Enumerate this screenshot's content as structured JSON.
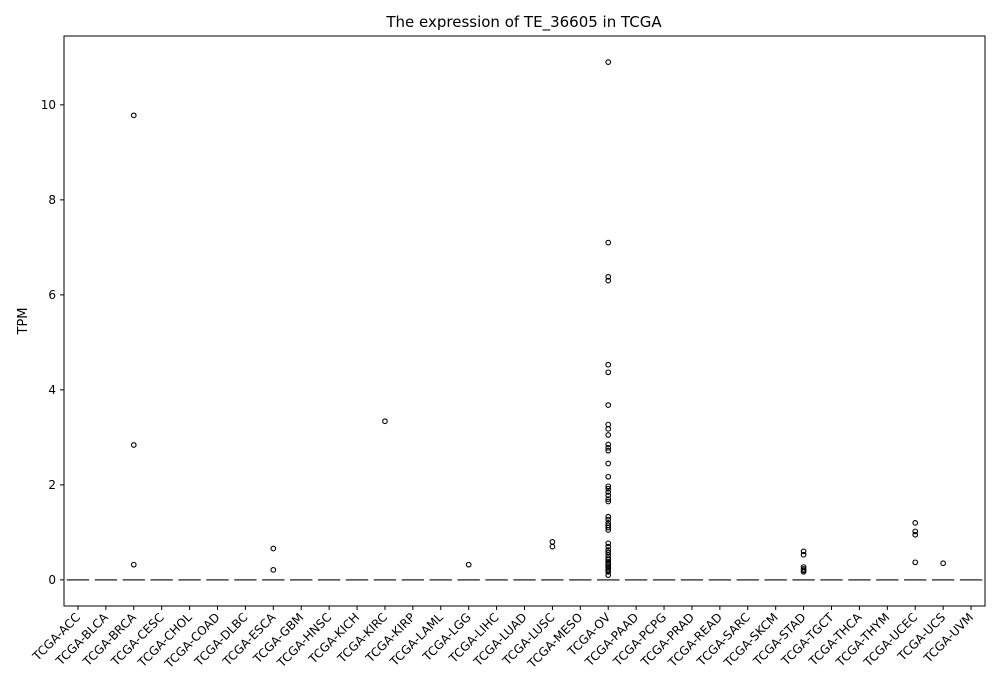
{
  "chart_data": {
    "type": "box",
    "title": "The expression of TE_36605 in TCGA",
    "xlabel": "",
    "ylabel": "TPM",
    "ylim": [
      -0.55,
      11.45
    ],
    "yticks": [
      0,
      2,
      4,
      6,
      8,
      10
    ],
    "grid": false,
    "legend": "none",
    "colors": {
      "axis": "#000000",
      "median": "#444444",
      "box_fill": "#ffffff",
      "outlier_stroke": "#000000"
    },
    "categories": [
      "TCGA-ACC",
      "TCGA-BLCA",
      "TCGA-BRCA",
      "TCGA-CESC",
      "TCGA-CHOL",
      "TCGA-COAD",
      "TCGA-DLBC",
      "TCGA-ESCA",
      "TCGA-GBM",
      "TCGA-HNSC",
      "TCGA-KICH",
      "TCGA-KIRC",
      "TCGA-KIRP",
      "TCGA-LAML",
      "TCGA-LGG",
      "TCGA-LIHC",
      "TCGA-LUAD",
      "TCGA-LUSC",
      "TCGA-MESO",
      "TCGA-OV",
      "TCGA-PAAD",
      "TCGA-PCPG",
      "TCGA-PRAD",
      "TCGA-READ",
      "TCGA-SARC",
      "TCGA-SKCM",
      "TCGA-STAD",
      "TCGA-TGCT",
      "TCGA-THCA",
      "TCGA-THYM",
      "TCGA-UCEC",
      "TCGA-UCS",
      "TCGA-UVM"
    ],
    "medians": [
      0,
      0,
      0,
      0,
      0,
      0,
      0,
      0,
      0,
      0,
      0,
      0,
      0,
      0,
      0,
      0,
      0,
      0,
      0,
      0,
      0,
      0,
      0,
      0,
      0,
      0,
      0,
      0,
      0,
      0,
      0,
      0,
      0
    ],
    "outliers": [
      [],
      [],
      [
        9.78,
        2.84,
        0.32
      ],
      [],
      [],
      [],
      [],
      [
        0.66,
        0.21
      ],
      [],
      [],
      [],
      [
        3.34
      ],
      [],
      [],
      [
        0.32
      ],
      [],
      [],
      [
        0.8,
        0.7
      ],
      [],
      [
        10.9,
        7.1,
        6.38,
        6.3,
        4.53,
        4.37,
        3.68,
        3.27,
        3.18,
        3.05,
        2.85,
        2.78,
        2.72,
        2.45,
        2.17,
        1.97,
        1.92,
        1.85,
        1.78,
        1.7,
        1.65,
        1.33,
        1.27,
        1.2,
        1.15,
        1.1,
        1.05,
        0.77,
        0.7,
        0.63,
        0.58,
        0.52,
        0.46,
        0.42,
        0.38,
        0.35,
        0.32,
        0.29,
        0.26,
        0.23,
        0.2,
        0.17,
        0.1
      ],
      [],
      [],
      [],
      [],
      [],
      [],
      [
        0.6,
        0.53,
        0.27,
        0.23,
        0.2,
        0.17
      ],
      [],
      [],
      [],
      [
        1.2,
        1.02,
        0.95,
        0.37
      ],
      [
        0.35
      ],
      []
    ]
  }
}
